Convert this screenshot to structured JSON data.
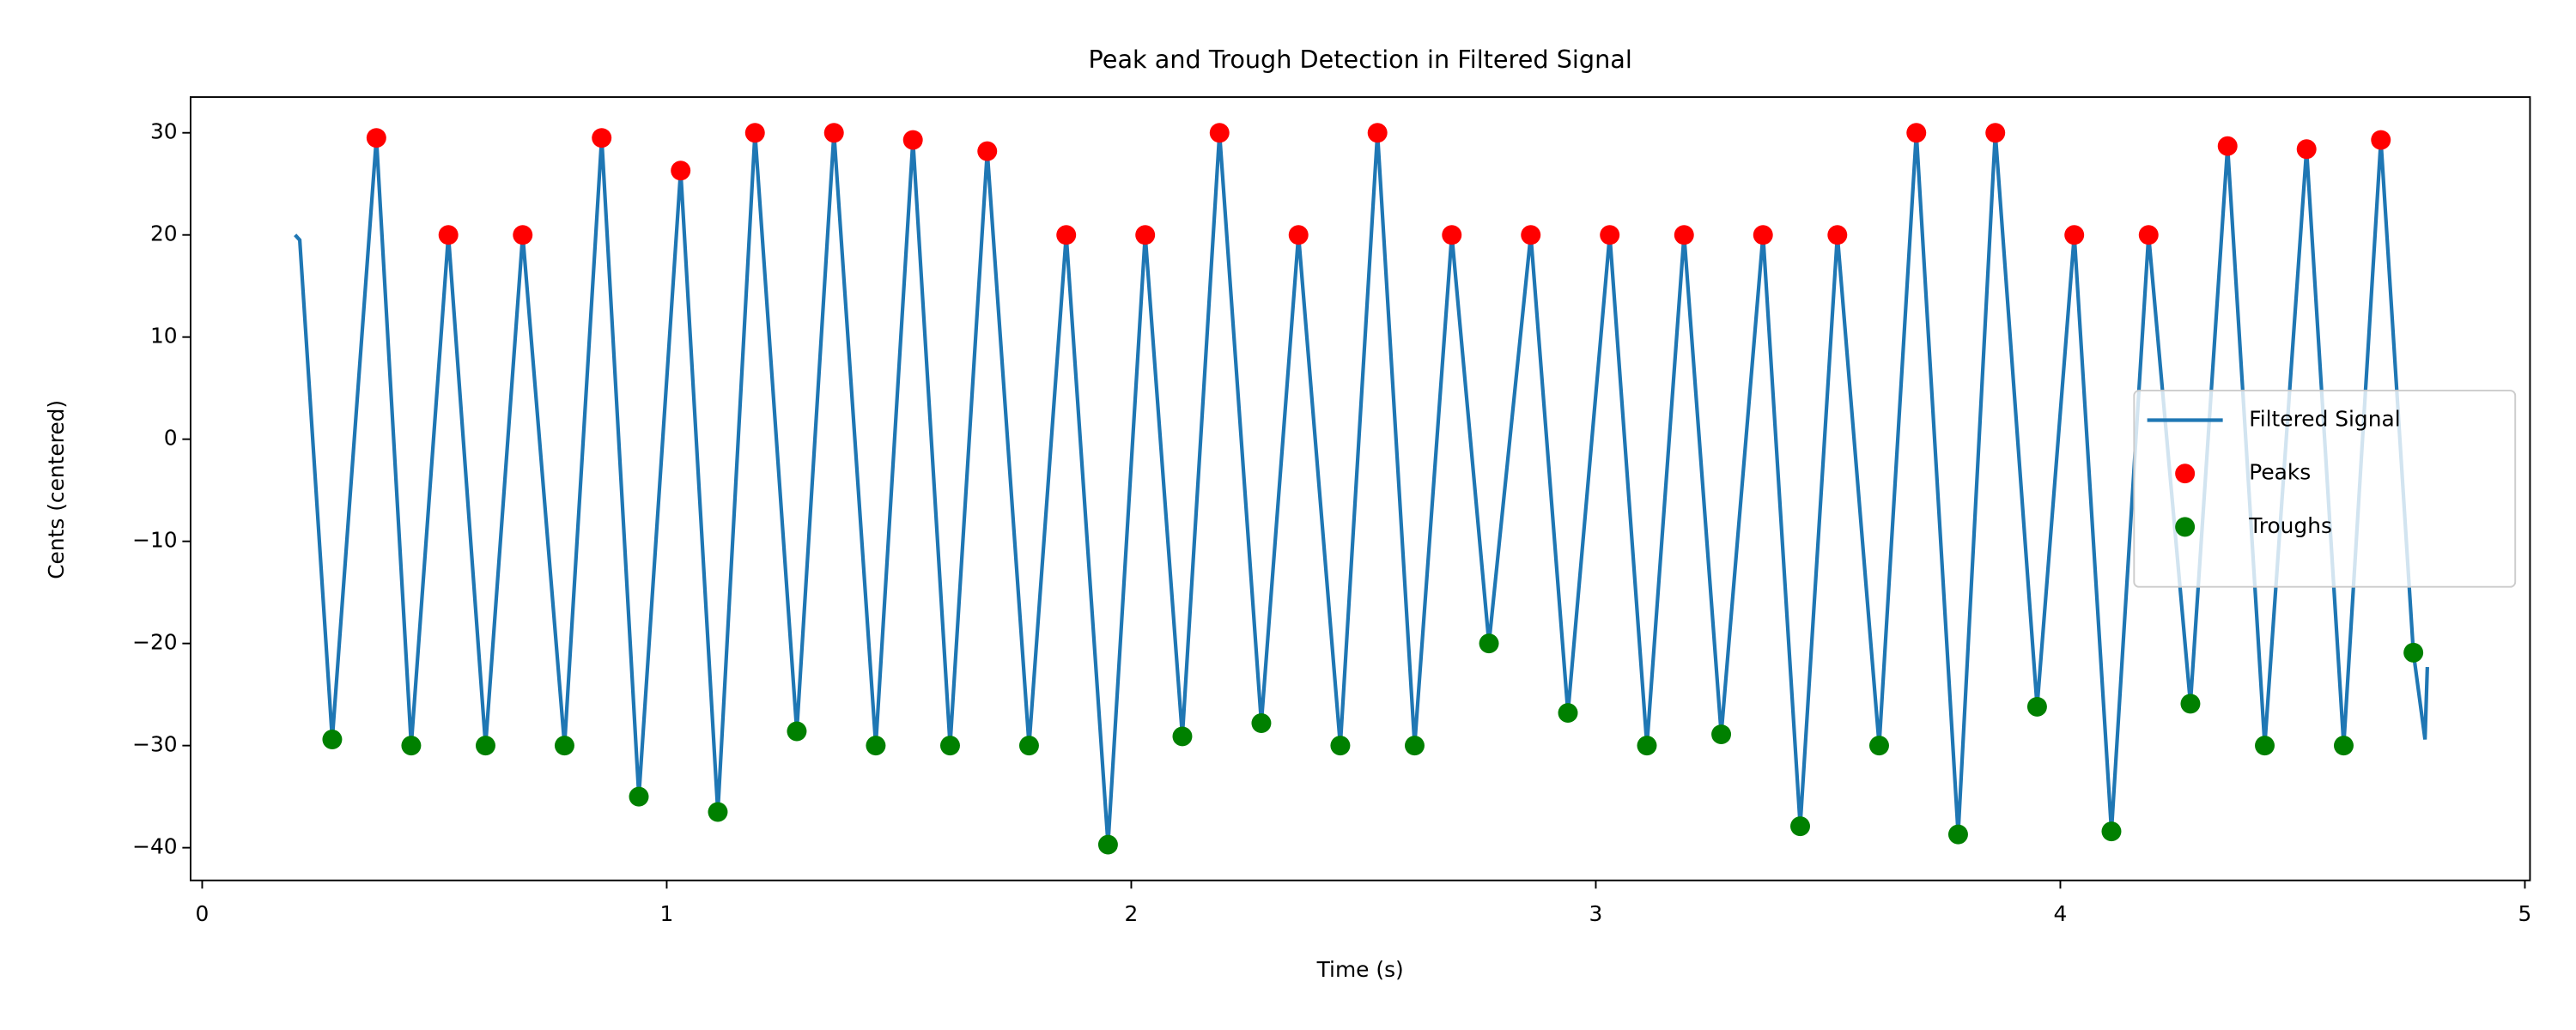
{
  "chart_data": {
    "type": "line",
    "title": "Peak and Trough Detection in Filtered Signal",
    "xlabel": "Time (s)",
    "ylabel": "Cents (centered)",
    "xlim": [
      -0.025,
      5.011
    ],
    "ylim": [
      -43.2,
      33.5
    ],
    "xticks": [
      0,
      1,
      2,
      3,
      4,
      5
    ],
    "yticks": [
      {
        "value": -40,
        "label": "−40"
      },
      {
        "value": -30,
        "label": "−30"
      },
      {
        "value": -20,
        "label": "−20"
      },
      {
        "value": -10,
        "label": "−10"
      },
      0,
      10,
      20,
      30
    ],
    "grid": false,
    "legend": "center right",
    "series": [
      {
        "name": "Filtered Signal",
        "color": "#1f77b4",
        "mode": "line",
        "x": [
          0.2,
          0.21,
          0.28,
          0.375,
          0.45,
          0.53,
          0.61,
          0.69,
          0.78,
          0.86,
          0.94,
          1.03,
          1.11,
          1.19,
          1.28,
          1.36,
          1.45,
          1.53,
          1.61,
          1.69,
          1.78,
          1.86,
          1.95,
          2.03,
          2.11,
          2.19,
          2.28,
          2.36,
          2.45,
          2.53,
          2.61,
          2.69,
          2.77,
          2.86,
          2.94,
          3.03,
          3.11,
          3.19,
          3.27,
          3.36,
          3.44,
          3.52,
          3.61,
          3.69,
          3.78,
          3.86,
          3.95,
          4.03,
          4.11,
          4.19,
          4.28,
          4.36,
          4.44,
          4.53,
          4.61,
          4.69,
          4.76,
          4.785,
          4.79
        ],
        "values": [
          20,
          19.5,
          -29.4,
          29.5,
          -30,
          20,
          -30,
          20,
          -30,
          29.5,
          -35,
          26.3,
          -36.5,
          30,
          -28.6,
          30,
          -30,
          29.3,
          -30,
          28.2,
          -30,
          20,
          -39.7,
          20,
          -29.1,
          30,
          -27.8,
          20,
          -30,
          30,
          -30,
          20,
          -20,
          20,
          -26.8,
          20,
          -30,
          20,
          -28.9,
          20,
          -37.9,
          20,
          -30,
          30,
          -38.7,
          30,
          -26.2,
          20,
          -38.4,
          20,
          -25.9,
          28.7,
          -30,
          28.4,
          -30,
          29.3,
          -20.9,
          -29.4,
          -22.3
        ]
      },
      {
        "name": "Peaks",
        "color": "#ff0000",
        "mode": "markers",
        "x": [
          0.375,
          0.53,
          0.69,
          0.86,
          1.03,
          1.19,
          1.36,
          1.53,
          1.69,
          1.86,
          2.03,
          2.19,
          2.36,
          2.53,
          2.69,
          2.86,
          3.03,
          3.19,
          3.36,
          3.52,
          3.69,
          3.86,
          4.03,
          4.19,
          4.36,
          4.53,
          4.69
        ],
        "values": [
          29.5,
          20,
          20,
          29.5,
          26.3,
          30,
          30,
          29.3,
          28.2,
          20,
          20,
          30,
          20,
          30,
          20,
          20,
          20,
          20,
          20,
          20,
          30,
          30,
          20,
          20,
          28.7,
          28.4,
          29.3
        ]
      },
      {
        "name": "Troughs",
        "color": "#008000",
        "mode": "markers",
        "x": [
          0.28,
          0.45,
          0.61,
          0.78,
          0.94,
          1.11,
          1.28,
          1.45,
          1.61,
          1.78,
          1.95,
          2.11,
          2.28,
          2.45,
          2.61,
          2.77,
          2.94,
          3.11,
          3.27,
          3.44,
          3.61,
          3.78,
          3.95,
          4.11,
          4.28,
          4.44,
          4.61,
          4.76
        ],
        "values": [
          -29.4,
          -30,
          -30,
          -30,
          -35,
          -36.5,
          -28.6,
          -30,
          -30,
          -30,
          -39.7,
          -29.1,
          -27.8,
          -30,
          -30,
          -20,
          -26.8,
          -30,
          -28.9,
          -37.9,
          -30,
          -38.7,
          -26.2,
          -38.4,
          -25.9,
          -30,
          -30,
          -20.9
        ]
      }
    ]
  }
}
